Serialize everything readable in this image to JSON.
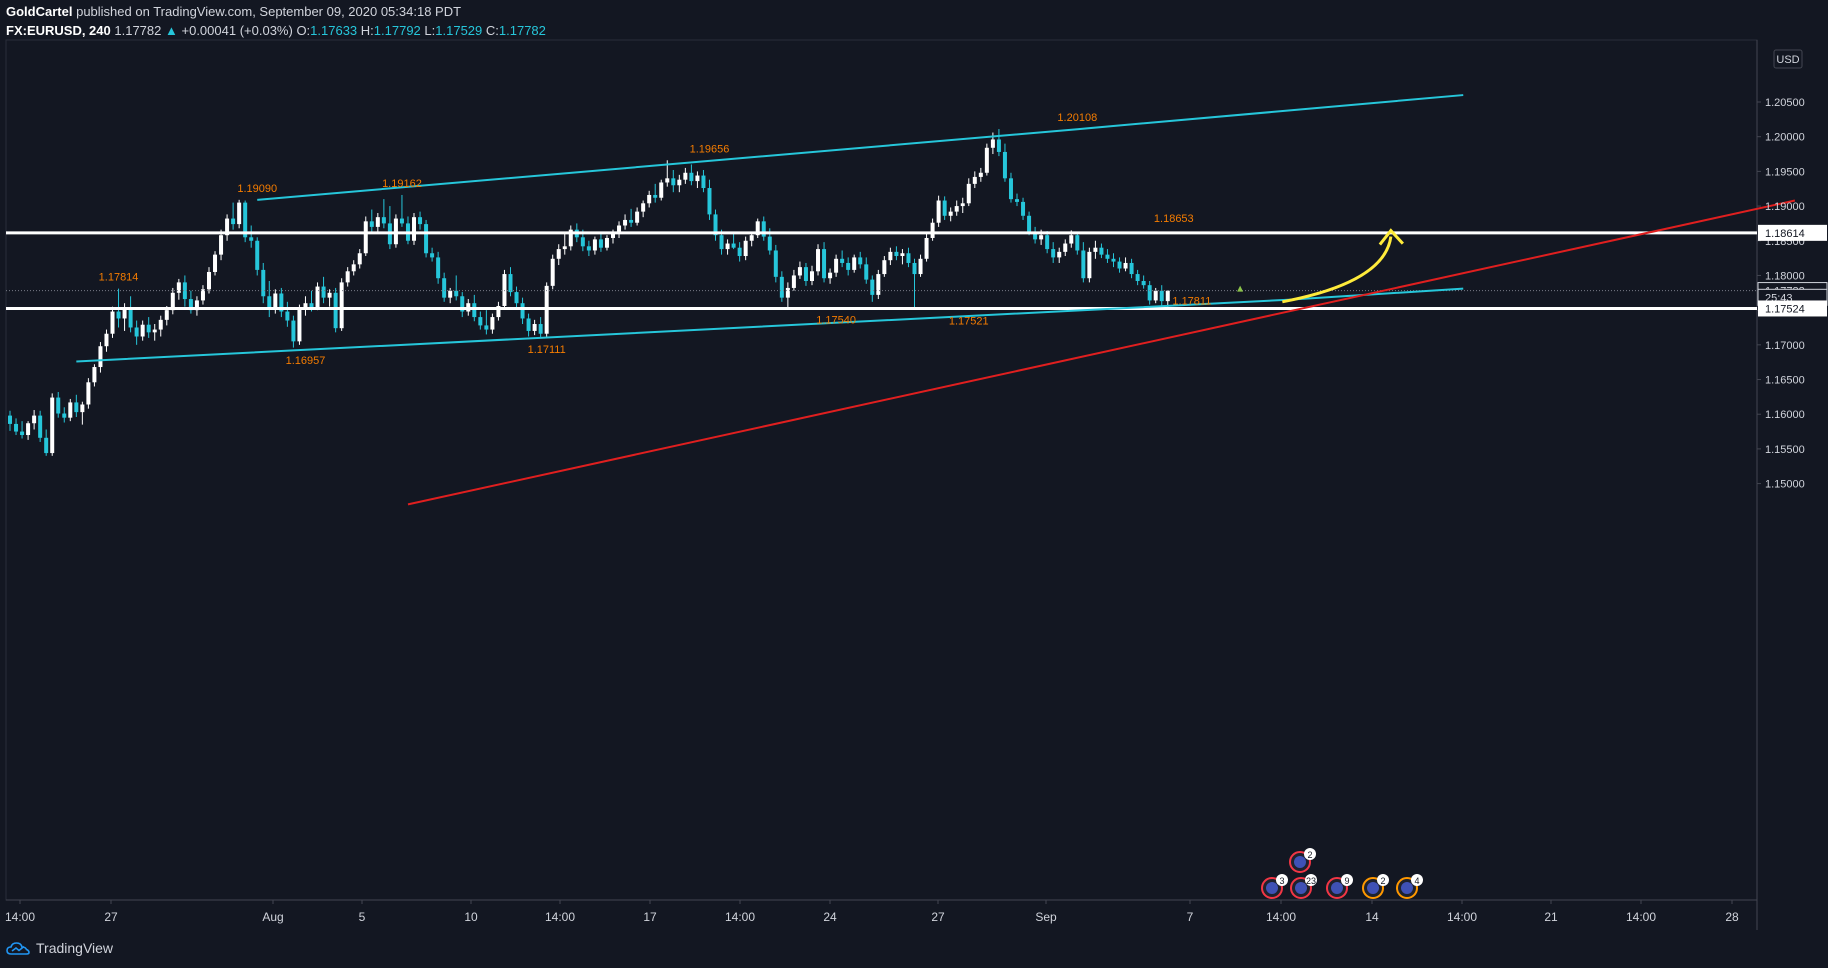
{
  "header": {
    "author": "GoldCartel",
    "published": "published on TradingView.com, September 09, 2020 05:34:18 PDT",
    "symbol": "FX:EURUSD, 240",
    "last": "1.17782",
    "change": "+0.00041 (+0.03%)",
    "o_label": "O:",
    "o": "1.17633",
    "h_label": "H:",
    "h": "1.17792",
    "l_label": "L:",
    "l": "1.17529",
    "c_label": "C:",
    "c": "1.17782"
  },
  "footer": {
    "brand": "TradingView"
  },
  "colors": {
    "background": "#131722",
    "up_candle": "#ffffff",
    "down_candle": "#26c6da",
    "channel": "#26c6da",
    "trendline": "#e01f1f",
    "arrow": "#ffeb3b",
    "level_label": "#f57c00"
  },
  "chart_data": {
    "type": "candlestick",
    "currency": "USD",
    "ylim": [
      1.147,
      1.2095
    ],
    "y_ticks": [
      "1.20500",
      "1.20000",
      "1.19500",
      "1.19000",
      "1.18500",
      "1.18000",
      "1.17500",
      "1.17000",
      "1.16500",
      "1.16000",
      "1.15500",
      "1.15000"
    ],
    "x_ticks": [
      "14:00",
      "27",
      "Aug",
      "5",
      "10",
      "14:00",
      "17",
      "14:00",
      "24",
      "27",
      "Sep",
      "7",
      "14:00",
      "14",
      "14:00",
      "21",
      "14:00",
      "28"
    ],
    "price_tags": [
      {
        "label": "1.18614",
        "value": 1.18614,
        "style": "level"
      },
      {
        "label": "1.17782",
        "value": 1.17782,
        "style": "last"
      },
      {
        "label": "25:43",
        "value": 1.17685,
        "style": "timer"
      },
      {
        "label": "1.17524",
        "value": 1.17524,
        "style": "level"
      }
    ],
    "horizontal_levels": [
      1.18614,
      1.17524
    ],
    "last_price": 1.17782,
    "swing_labels": [
      {
        "label": "1.17814",
        "value": 1.17814,
        "bar": 18
      },
      {
        "label": "1.19090",
        "value": 1.1909,
        "bar": 41
      },
      {
        "label": "1.16957",
        "value": 1.16957,
        "bar": 49
      },
      {
        "label": "1.19162",
        "value": 1.19162,
        "bar": 65
      },
      {
        "label": "1.17111",
        "value": 1.17111,
        "bar": 89
      },
      {
        "label": "1.19656",
        "value": 1.19656,
        "bar": 116
      },
      {
        "label": "1.17540",
        "value": 1.1754,
        "bar": 137
      },
      {
        "label": "1.17521",
        "value": 1.17521,
        "bar": 159
      },
      {
        "label": "1.20108",
        "value": 1.20108,
        "bar": 177
      },
      {
        "label": "1.18653",
        "value": 1.18653,
        "bar": 193
      },
      {
        "label": "1.17811",
        "value": 1.17811,
        "bar": 196
      }
    ],
    "channel_upper": [
      [
        41,
        1.1909
      ],
      [
        177,
        1.20108
      ],
      [
        241,
        1.206
      ]
    ],
    "channel_lower": [
      [
        11,
        1.1676
      ],
      [
        212,
        1.1765
      ],
      [
        241,
        1.1781
      ]
    ],
    "support_line": [
      [
        66,
        1.147
      ],
      [
        296,
        1.1908
      ]
    ],
    "events": [
      {
        "count": "3",
        "x": 1.1,
        "stack": 0
      },
      {
        "count": "2",
        "x": 1.3,
        "stack": 1
      },
      {
        "count": "23",
        "x": 1.3,
        "stack": 0
      },
      {
        "count": "9",
        "x": 1.33,
        "stack": 0
      },
      {
        "count": "2",
        "x": 1.37,
        "stack": 0
      },
      {
        "count": "4",
        "x": 1.41,
        "stack": 0
      }
    ],
    "ohlc": [
      [
        1.1598,
        1.1605,
        1.1576,
        1.1586
      ],
      [
        1.1586,
        1.1594,
        1.157,
        1.1575
      ],
      [
        1.1575,
        1.159,
        1.1565,
        1.157
      ],
      [
        1.157,
        1.159,
        1.1563,
        1.1587
      ],
      [
        1.1587,
        1.1606,
        1.1578,
        1.1598
      ],
      [
        1.1598,
        1.1605,
        1.156,
        1.1566
      ],
      [
        1.1566,
        1.1578,
        1.154,
        1.1544
      ],
      [
        1.1544,
        1.163,
        1.154,
        1.1624
      ],
      [
        1.1624,
        1.1632,
        1.1595,
        1.1601
      ],
      [
        1.1601,
        1.161,
        1.1588,
        1.1595
      ],
      [
        1.1595,
        1.1622,
        1.159,
        1.1617
      ],
      [
        1.1617,
        1.1628,
        1.1596,
        1.1603
      ],
      [
        1.1603,
        1.1618,
        1.1585,
        1.1614
      ],
      [
        1.1614,
        1.1652,
        1.1608,
        1.1646
      ],
      [
        1.1646,
        1.1672,
        1.164,
        1.1668
      ],
      [
        1.1668,
        1.1704,
        1.166,
        1.1698
      ],
      [
        1.1698,
        1.1722,
        1.169,
        1.1716
      ],
      [
        1.1716,
        1.1755,
        1.171,
        1.1748
      ],
      [
        1.1748,
        1.1781,
        1.1725,
        1.1738
      ],
      [
        1.1738,
        1.176,
        1.172,
        1.1752
      ],
      [
        1.1752,
        1.177,
        1.1718,
        1.1725
      ],
      [
        1.1725,
        1.1735,
        1.17,
        1.1712
      ],
      [
        1.1712,
        1.1735,
        1.1706,
        1.1729
      ],
      [
        1.1729,
        1.174,
        1.171,
        1.1718
      ],
      [
        1.1718,
        1.173,
        1.1706,
        1.1722
      ],
      [
        1.1722,
        1.1742,
        1.1712,
        1.1736
      ],
      [
        1.1736,
        1.1756,
        1.1728,
        1.175
      ],
      [
        1.175,
        1.1782,
        1.1744,
        1.1775
      ],
      [
        1.1775,
        1.1795,
        1.1765,
        1.179
      ],
      [
        1.179,
        1.18,
        1.1755,
        1.1766
      ],
      [
        1.1766,
        1.1778,
        1.1745,
        1.175
      ],
      [
        1.175,
        1.177,
        1.1742,
        1.1764
      ],
      [
        1.1764,
        1.1786,
        1.1758,
        1.178
      ],
      [
        1.178,
        1.1812,
        1.1774,
        1.1805
      ],
      [
        1.1805,
        1.1835,
        1.18,
        1.183
      ],
      [
        1.183,
        1.1866,
        1.1822,
        1.1858
      ],
      [
        1.1858,
        1.1888,
        1.185,
        1.1882
      ],
      [
        1.1882,
        1.1905,
        1.1866,
        1.1874
      ],
      [
        1.1874,
        1.1909,
        1.1868,
        1.1905
      ],
      [
        1.1905,
        1.1908,
        1.1848,
        1.1855
      ],
      [
        1.1855,
        1.1872,
        1.184,
        1.185
      ],
      [
        1.185,
        1.1855,
        1.18,
        1.1808
      ],
      [
        1.1808,
        1.1818,
        1.176,
        1.177
      ],
      [
        1.177,
        1.1792,
        1.174,
        1.1752
      ],
      [
        1.1752,
        1.178,
        1.1745,
        1.1774
      ],
      [
        1.1774,
        1.1782,
        1.174,
        1.1748
      ],
      [
        1.1748,
        1.1762,
        1.1726,
        1.1735
      ],
      [
        1.1735,
        1.1742,
        1.1696,
        1.1705
      ],
      [
        1.1705,
        1.1758,
        1.17,
        1.1752
      ],
      [
        1.1752,
        1.177,
        1.1742,
        1.176
      ],
      [
        1.176,
        1.1778,
        1.1748,
        1.1754
      ],
      [
        1.1754,
        1.179,
        1.175,
        1.1784
      ],
      [
        1.1784,
        1.1798,
        1.176,
        1.1768
      ],
      [
        1.1768,
        1.178,
        1.1755,
        1.1775
      ],
      [
        1.1775,
        1.1782,
        1.1718,
        1.1724
      ],
      [
        1.1724,
        1.1796,
        1.172,
        1.179
      ],
      [
        1.179,
        1.1812,
        1.1784,
        1.1806
      ],
      [
        1.1806,
        1.1822,
        1.18,
        1.1816
      ],
      [
        1.1816,
        1.1838,
        1.181,
        1.1832
      ],
      [
        1.1832,
        1.1885,
        1.1828,
        1.1878
      ],
      [
        1.1878,
        1.1895,
        1.186,
        1.187
      ],
      [
        1.187,
        1.189,
        1.1862,
        1.1884
      ],
      [
        1.1884,
        1.191,
        1.1868,
        1.1875
      ],
      [
        1.1875,
        1.19,
        1.1838,
        1.1845
      ],
      [
        1.1845,
        1.1888,
        1.184,
        1.1882
      ],
      [
        1.1882,
        1.1916,
        1.187,
        1.1875
      ],
      [
        1.1875,
        1.1885,
        1.1845,
        1.185
      ],
      [
        1.185,
        1.189,
        1.1844,
        1.1884
      ],
      [
        1.1884,
        1.1892,
        1.1866,
        1.1874
      ],
      [
        1.1874,
        1.188,
        1.1826,
        1.1832
      ],
      [
        1.1832,
        1.184,
        1.182,
        1.1826
      ],
      [
        1.1826,
        1.1834,
        1.1788,
        1.1796
      ],
      [
        1.1796,
        1.1804,
        1.1762,
        1.1768
      ],
      [
        1.1768,
        1.1782,
        1.176,
        1.1778
      ],
      [
        1.1778,
        1.18,
        1.1764,
        1.177
      ],
      [
        1.177,
        1.1776,
        1.174,
        1.1748
      ],
      [
        1.1748,
        1.1766,
        1.1742,
        1.176
      ],
      [
        1.176,
        1.1772,
        1.1734,
        1.174
      ],
      [
        1.174,
        1.1748,
        1.1722,
        1.1728
      ],
      [
        1.1728,
        1.175,
        1.1715,
        1.1722
      ],
      [
        1.1722,
        1.1745,
        1.1716,
        1.174
      ],
      [
        1.174,
        1.1762,
        1.1735,
        1.1756
      ],
      [
        1.1756,
        1.1808,
        1.1752,
        1.1802
      ],
      [
        1.1802,
        1.1812,
        1.177,
        1.1776
      ],
      [
        1.1776,
        1.1784,
        1.1752,
        1.176
      ],
      [
        1.176,
        1.1768,
        1.173,
        1.1738
      ],
      [
        1.1738,
        1.1745,
        1.1712,
        1.172
      ],
      [
        1.172,
        1.1736,
        1.1714,
        1.173
      ],
      [
        1.173,
        1.174,
        1.1711,
        1.1716
      ],
      [
        1.1716,
        1.179,
        1.1712,
        1.1785
      ],
      [
        1.1785,
        1.183,
        1.178,
        1.1824
      ],
      [
        1.1824,
        1.1845,
        1.1815,
        1.1838
      ],
      [
        1.1838,
        1.186,
        1.183,
        1.1842
      ],
      [
        1.1842,
        1.1872,
        1.1836,
        1.1866
      ],
      [
        1.1866,
        1.1875,
        1.1848,
        1.1855
      ],
      [
        1.1855,
        1.1866,
        1.1835,
        1.1842
      ],
      [
        1.1842,
        1.185,
        1.1828,
        1.1836
      ],
      [
        1.1836,
        1.1856,
        1.183,
        1.1852
      ],
      [
        1.1852,
        1.1862,
        1.1834,
        1.184
      ],
      [
        1.184,
        1.1858,
        1.1836,
        1.1854
      ],
      [
        1.1854,
        1.1866,
        1.1846,
        1.186
      ],
      [
        1.186,
        1.1878,
        1.1854,
        1.1872
      ],
      [
        1.1872,
        1.1888,
        1.1866,
        1.188
      ],
      [
        1.188,
        1.1896,
        1.187,
        1.1876
      ],
      [
        1.1876,
        1.1898,
        1.1872,
        1.1892
      ],
      [
        1.1892,
        1.1908,
        1.1884,
        1.1904
      ],
      [
        1.1904,
        1.1922,
        1.1898,
        1.1916
      ],
      [
        1.1916,
        1.1932,
        1.1905,
        1.1912
      ],
      [
        1.1912,
        1.1938,
        1.1908,
        1.1934
      ],
      [
        1.1934,
        1.1966,
        1.1928,
        1.194
      ],
      [
        1.194,
        1.1952,
        1.192,
        1.193
      ],
      [
        1.193,
        1.1945,
        1.192,
        1.1938
      ],
      [
        1.1938,
        1.1955,
        1.1932,
        1.1948
      ],
      [
        1.1948,
        1.196,
        1.193,
        1.1936
      ],
      [
        1.1936,
        1.195,
        1.1926,
        1.1944
      ],
      [
        1.1944,
        1.1952,
        1.192,
        1.1926
      ],
      [
        1.1926,
        1.1938,
        1.188,
        1.1888
      ],
      [
        1.1888,
        1.1895,
        1.185,
        1.1858
      ],
      [
        1.1858,
        1.1866,
        1.183,
        1.1838
      ],
      [
        1.1838,
        1.1852,
        1.183,
        1.1846
      ],
      [
        1.1846,
        1.186,
        1.1838,
        1.184
      ],
      [
        1.184,
        1.1848,
        1.182,
        1.1828
      ],
      [
        1.1828,
        1.1856,
        1.1822,
        1.185
      ],
      [
        1.185,
        1.1862,
        1.1842,
        1.1858
      ],
      [
        1.1858,
        1.1882,
        1.1854,
        1.1878
      ],
      [
        1.1878,
        1.1885,
        1.185,
        1.1856
      ],
      [
        1.1856,
        1.1868,
        1.183,
        1.1836
      ],
      [
        1.1836,
        1.1844,
        1.179,
        1.1798
      ],
      [
        1.1798,
        1.1806,
        1.1762,
        1.1768
      ],
      [
        1.1768,
        1.179,
        1.1754,
        1.1782
      ],
      [
        1.1782,
        1.1808,
        1.1778,
        1.18
      ],
      [
        1.18,
        1.182,
        1.1795,
        1.1812
      ],
      [
        1.1812,
        1.1818,
        1.1785,
        1.1792
      ],
      [
        1.1792,
        1.1814,
        1.1786,
        1.1806
      ],
      [
        1.1806,
        1.1845,
        1.18,
        1.1838
      ],
      [
        1.1838,
        1.1848,
        1.179,
        1.1796
      ],
      [
        1.1796,
        1.181,
        1.1788,
        1.1804
      ],
      [
        1.1804,
        1.183,
        1.1798,
        1.1824
      ],
      [
        1.1824,
        1.1836,
        1.1812,
        1.1818
      ],
      [
        1.1818,
        1.1826,
        1.18,
        1.1808
      ],
      [
        1.1808,
        1.183,
        1.1804,
        1.1826
      ],
      [
        1.1826,
        1.1834,
        1.181,
        1.1816
      ],
      [
        1.1816,
        1.1826,
        1.1788,
        1.1794
      ],
      [
        1.1794,
        1.18,
        1.1762,
        1.1772
      ],
      [
        1.1772,
        1.1808,
        1.1766,
        1.1802
      ],
      [
        1.1802,
        1.1828,
        1.1798,
        1.1822
      ],
      [
        1.1822,
        1.184,
        1.1815,
        1.1834
      ],
      [
        1.1834,
        1.1842,
        1.1822,
        1.1828
      ],
      [
        1.1828,
        1.1838,
        1.1816,
        1.1832
      ],
      [
        1.1832,
        1.184,
        1.1812,
        1.1818
      ],
      [
        1.1818,
        1.1824,
        1.1752,
        1.1802
      ],
      [
        1.1802,
        1.183,
        1.1798,
        1.1824
      ],
      [
        1.1824,
        1.186,
        1.182,
        1.1854
      ],
      [
        1.1854,
        1.1882,
        1.185,
        1.1876
      ],
      [
        1.1876,
        1.1915,
        1.187,
        1.1908
      ],
      [
        1.1908,
        1.1914,
        1.188,
        1.1886
      ],
      [
        1.1886,
        1.1898,
        1.1878,
        1.1892
      ],
      [
        1.1892,
        1.1908,
        1.1886,
        1.19
      ],
      [
        1.19,
        1.1912,
        1.189,
        1.1904
      ],
      [
        1.1904,
        1.194,
        1.19,
        1.1932
      ],
      [
        1.1932,
        1.195,
        1.1926,
        1.1942
      ],
      [
        1.1942,
        1.1955,
        1.1935,
        1.1948
      ],
      [
        1.1948,
        1.199,
        1.1944,
        1.1984
      ],
      [
        1.1984,
        1.2006,
        1.1975,
        1.1996
      ],
      [
        1.1996,
        1.2011,
        1.1972,
        1.1978
      ],
      [
        1.1978,
        1.199,
        1.1935,
        1.194
      ],
      [
        1.194,
        1.1948,
        1.1905,
        1.191
      ],
      [
        1.191,
        1.1918,
        1.19,
        1.1906
      ],
      [
        1.1906,
        1.1912,
        1.188,
        1.1886
      ],
      [
        1.1886,
        1.1892,
        1.1858,
        1.1862
      ],
      [
        1.1862,
        1.187,
        1.1846,
        1.1852
      ],
      [
        1.1852,
        1.1866,
        1.1844,
        1.1858
      ],
      [
        1.1858,
        1.1864,
        1.1832,
        1.1838
      ],
      [
        1.1838,
        1.1848,
        1.1818,
        1.1826
      ],
      [
        1.1826,
        1.184,
        1.1818,
        1.1834
      ],
      [
        1.1834,
        1.1852,
        1.1828,
        1.1846
      ],
      [
        1.1846,
        1.1865,
        1.184,
        1.1858
      ],
      [
        1.1858,
        1.1862,
        1.183,
        1.1836
      ],
      [
        1.1836,
        1.1848,
        1.179,
        1.1796
      ],
      [
        1.1796,
        1.184,
        1.179,
        1.1834
      ],
      [
        1.1834,
        1.185,
        1.1824,
        1.184
      ],
      [
        1.184,
        1.1846,
        1.1825,
        1.183
      ],
      [
        1.183,
        1.1838,
        1.1818,
        1.1824
      ],
      [
        1.1824,
        1.1832,
        1.1812,
        1.182
      ],
      [
        1.182,
        1.1826,
        1.1804,
        1.181
      ],
      [
        1.181,
        1.1826,
        1.1806,
        1.1818
      ],
      [
        1.1818,
        1.1824,
        1.1796,
        1.1802
      ],
      [
        1.1802,
        1.1808,
        1.1786,
        1.1792
      ],
      [
        1.1792,
        1.18,
        1.1781,
        1.1786
      ],
      [
        1.1786,
        1.1792,
        1.1758,
        1.1764
      ],
      [
        1.1764,
        1.1782,
        1.176,
        1.1778
      ],
      [
        1.1778,
        1.1786,
        1.1753,
        1.1763
      ],
      [
        1.1763,
        1.1779,
        1.1753,
        1.1778
      ]
    ]
  }
}
